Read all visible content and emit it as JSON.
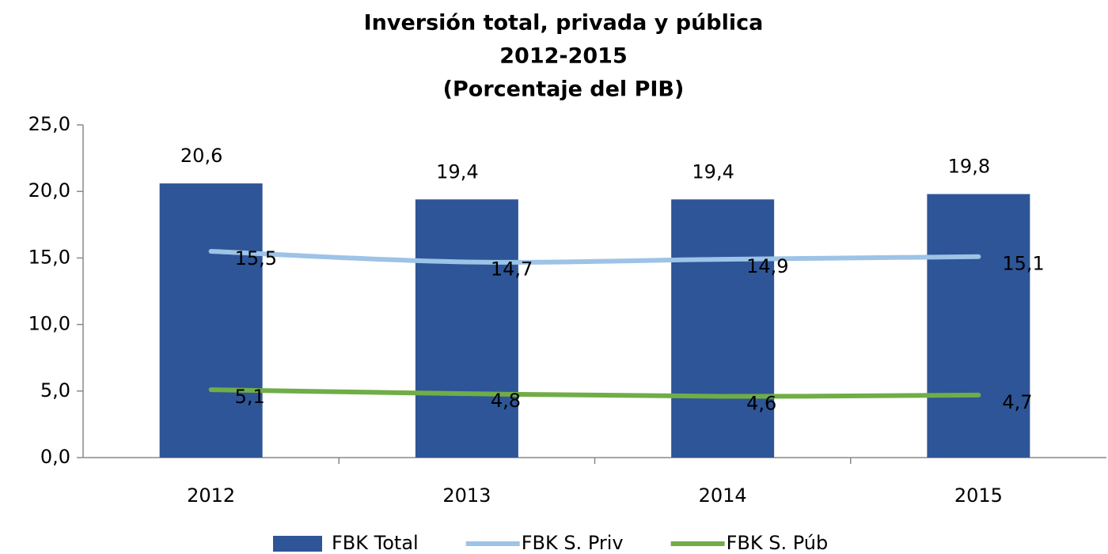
{
  "chart_data": {
    "type": "bar",
    "title": "Inversión total, privada y pública",
    "subtitle": [
      "2012-2015",
      "(Porcentaje del PIB)"
    ],
    "categories": [
      "2012",
      "2013",
      "2014",
      "2015"
    ],
    "series": [
      {
        "name": "FBK Total",
        "type": "bar",
        "color": "#2e5597",
        "values": [
          20.6,
          19.4,
          19.4,
          19.8
        ],
        "value_labels": [
          "20,6",
          "19,4",
          "19,4",
          "19,8"
        ]
      },
      {
        "name": "FBK S. Priv",
        "type": "line",
        "color": "#9dc3e6",
        "values": [
          15.5,
          14.7,
          14.9,
          15.1
        ],
        "value_labels": [
          "15,5",
          "14,7",
          "14,9",
          "15,1"
        ]
      },
      {
        "name": "FBK S. Púb",
        "type": "line",
        "color": "#70ad47",
        "values": [
          5.1,
          4.8,
          4.6,
          4.7
        ],
        "value_labels": [
          "5,1",
          "4,8",
          "4,6",
          "4,7"
        ]
      }
    ],
    "ylim": [
      0,
      25
    ],
    "yticks": [
      {
        "value": 0,
        "label": "0,0"
      },
      {
        "value": 5,
        "label": "5,0"
      },
      {
        "value": 10,
        "label": "10,0"
      },
      {
        "value": 15,
        "label": "15,0"
      },
      {
        "value": 20,
        "label": "20,0"
      },
      {
        "value": 25,
        "label": "25,0"
      }
    ],
    "legend": "bottom"
  }
}
